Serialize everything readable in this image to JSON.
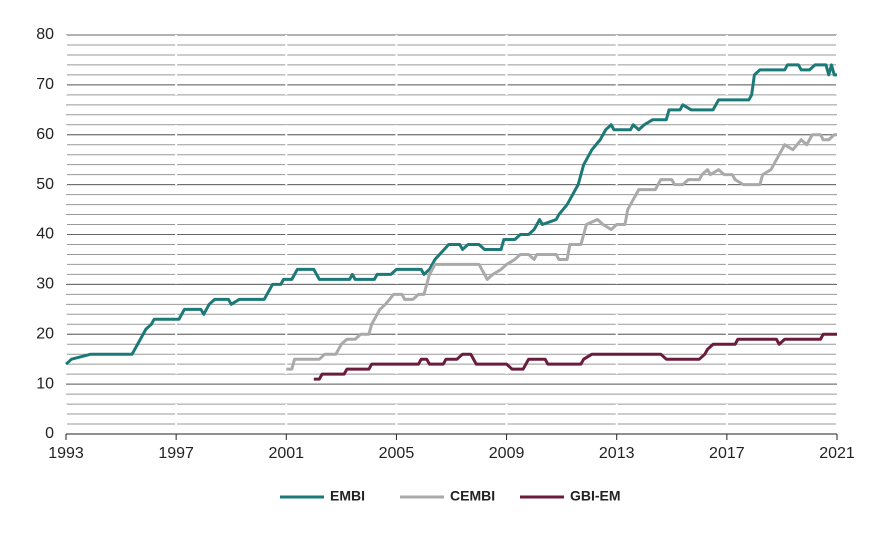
{
  "chart_data": {
    "type": "line",
    "xlim": [
      1993,
      2021
    ],
    "xticks": [
      1993,
      1997,
      2001,
      2005,
      2009,
      2013,
      2017,
      2021
    ],
    "ylim": [
      0,
      80
    ],
    "yticks": [
      0,
      10,
      20,
      30,
      40,
      50,
      60,
      70,
      80
    ],
    "grid": true,
    "grid_minor_step": 2,
    "legend": "bottom",
    "series": [
      {
        "name": "EMBI",
        "color": "#1b7a78",
        "x": [
          1993.0,
          1993.2,
          1993.9,
          1995.4,
          1995.6,
          1995.9,
          1996.1,
          1996.2,
          1997.1,
          1997.3,
          1997.9,
          1998.0,
          1998.2,
          1998.4,
          1998.9,
          1999.0,
          1999.3,
          2000.2,
          2000.5,
          2000.8,
          2000.9,
          2001.2,
          2001.4,
          2002.0,
          2002.2,
          2003.3,
          2003.4,
          2003.5,
          2004.2,
          2004.3,
          2004.8,
          2005.0,
          2005.9,
          2006.0,
          2006.2,
          2006.4,
          2006.9,
          2007.3,
          2007.4,
          2007.6,
          2008.0,
          2008.2,
          2008.8,
          2008.9,
          2009.3,
          2009.5,
          2009.8,
          2010.0,
          2010.2,
          2010.3,
          2010.8,
          2010.9,
          2011.2,
          2011.6,
          2011.8,
          2012.1,
          2012.4,
          2012.6,
          2012.8,
          2012.9,
          2013.5,
          2013.6,
          2013.8,
          2014.0,
          2014.3,
          2014.8,
          2014.9,
          2015.3,
          2015.4,
          2015.7,
          2016.5,
          2016.7,
          2017.8,
          2017.9,
          2018.0,
          2018.2,
          2019.1,
          2019.2,
          2019.6,
          2019.7,
          2020.0,
          2020.2,
          2020.6,
          2020.7,
          2020.8,
          2020.9,
          2021.0
        ],
        "values": [
          14,
          15,
          16,
          16,
          18,
          21,
          22,
          23,
          23,
          25,
          25,
          24,
          26,
          27,
          27,
          26,
          27,
          27,
          30,
          30,
          31,
          31,
          33,
          33,
          31,
          31,
          32,
          31,
          31,
          32,
          32,
          33,
          33,
          32,
          33,
          35,
          38,
          38,
          37,
          38,
          38,
          37,
          37,
          39,
          39,
          40,
          40,
          41,
          43,
          42,
          43,
          44,
          46,
          50,
          54,
          57,
          59,
          61,
          62,
          61,
          61,
          62,
          61,
          62,
          63,
          63,
          65,
          65,
          66,
          65,
          65,
          67,
          67,
          68,
          72,
          73,
          73,
          74,
          74,
          73,
          73,
          74,
          74,
          72,
          74,
          72,
          72
        ]
      },
      {
        "name": "CEMBI",
        "color": "#aaaaaa",
        "x": [
          2001.0,
          2001.2,
          2001.3,
          2002.2,
          2002.4,
          2002.8,
          2002.9,
          2003.0,
          2003.2,
          2003.5,
          2003.7,
          2004.0,
          2004.1,
          2004.4,
          2004.6,
          2004.9,
          2005.2,
          2005.3,
          2005.6,
          2005.8,
          2006.0,
          2006.2,
          2006.4,
          2006.7,
          2008.0,
          2008.3,
          2008.5,
          2008.8,
          2009.0,
          2009.3,
          2009.5,
          2009.8,
          2010.0,
          2010.1,
          2010.8,
          2010.9,
          2011.2,
          2011.3,
          2011.7,
          2011.9,
          2012.3,
          2012.5,
          2012.8,
          2013.0,
          2013.3,
          2013.4,
          2013.6,
          2013.8,
          2014.4,
          2014.6,
          2015.0,
          2015.1,
          2015.4,
          2015.6,
          2016.0,
          2016.1,
          2016.3,
          2016.4,
          2016.7,
          2016.9,
          2017.2,
          2017.3,
          2017.6,
          2018.2,
          2018.3,
          2018.6,
          2018.9,
          2019.1,
          2019.4,
          2019.7,
          2019.9,
          2020.1,
          2020.4,
          2020.5,
          2020.7,
          2020.9,
          2021.0
        ],
        "values": [
          13,
          13,
          15,
          15,
          16,
          16,
          17,
          18,
          19,
          19,
          20,
          20,
          22,
          25,
          26,
          28,
          28,
          27,
          27,
          28,
          28,
          32,
          34,
          34,
          34,
          31,
          32,
          33,
          34,
          35,
          36,
          36,
          35,
          36,
          36,
          35,
          35,
          38,
          38,
          42,
          43,
          42,
          41,
          42,
          42,
          45,
          47,
          49,
          49,
          51,
          51,
          50,
          50,
          51,
          51,
          52,
          53,
          52,
          53,
          52,
          52,
          51,
          50,
          50,
          52,
          53,
          56,
          58,
          57,
          59,
          58,
          60,
          60,
          59,
          59,
          60,
          60
        ]
      },
      {
        "name": "GBI-EM",
        "color": "#6b1b3b",
        "x": [
          2002.0,
          2002.2,
          2002.3,
          2003.1,
          2003.2,
          2004.0,
          2004.1,
          2005.8,
          2005.9,
          2006.1,
          2006.2,
          2006.7,
          2006.8,
          2007.2,
          2007.4,
          2007.7,
          2007.9,
          2009.0,
          2009.2,
          2009.6,
          2009.8,
          2010.4,
          2010.5,
          2011.7,
          2011.8,
          2012.1,
          2014.6,
          2014.8,
          2016.0,
          2016.2,
          2016.3,
          2016.5,
          2017.3,
          2017.4,
          2018.8,
          2018.9,
          2019.1,
          2020.4,
          2020.5,
          2021.0
        ],
        "values": [
          11,
          11,
          12,
          12,
          13,
          13,
          14,
          14,
          15,
          15,
          14,
          14,
          15,
          15,
          16,
          16,
          14,
          14,
          13,
          13,
          15,
          15,
          14,
          14,
          15,
          16,
          16,
          15,
          15,
          16,
          17,
          18,
          18,
          19,
          19,
          18,
          19,
          19,
          20,
          20
        ]
      }
    ]
  }
}
